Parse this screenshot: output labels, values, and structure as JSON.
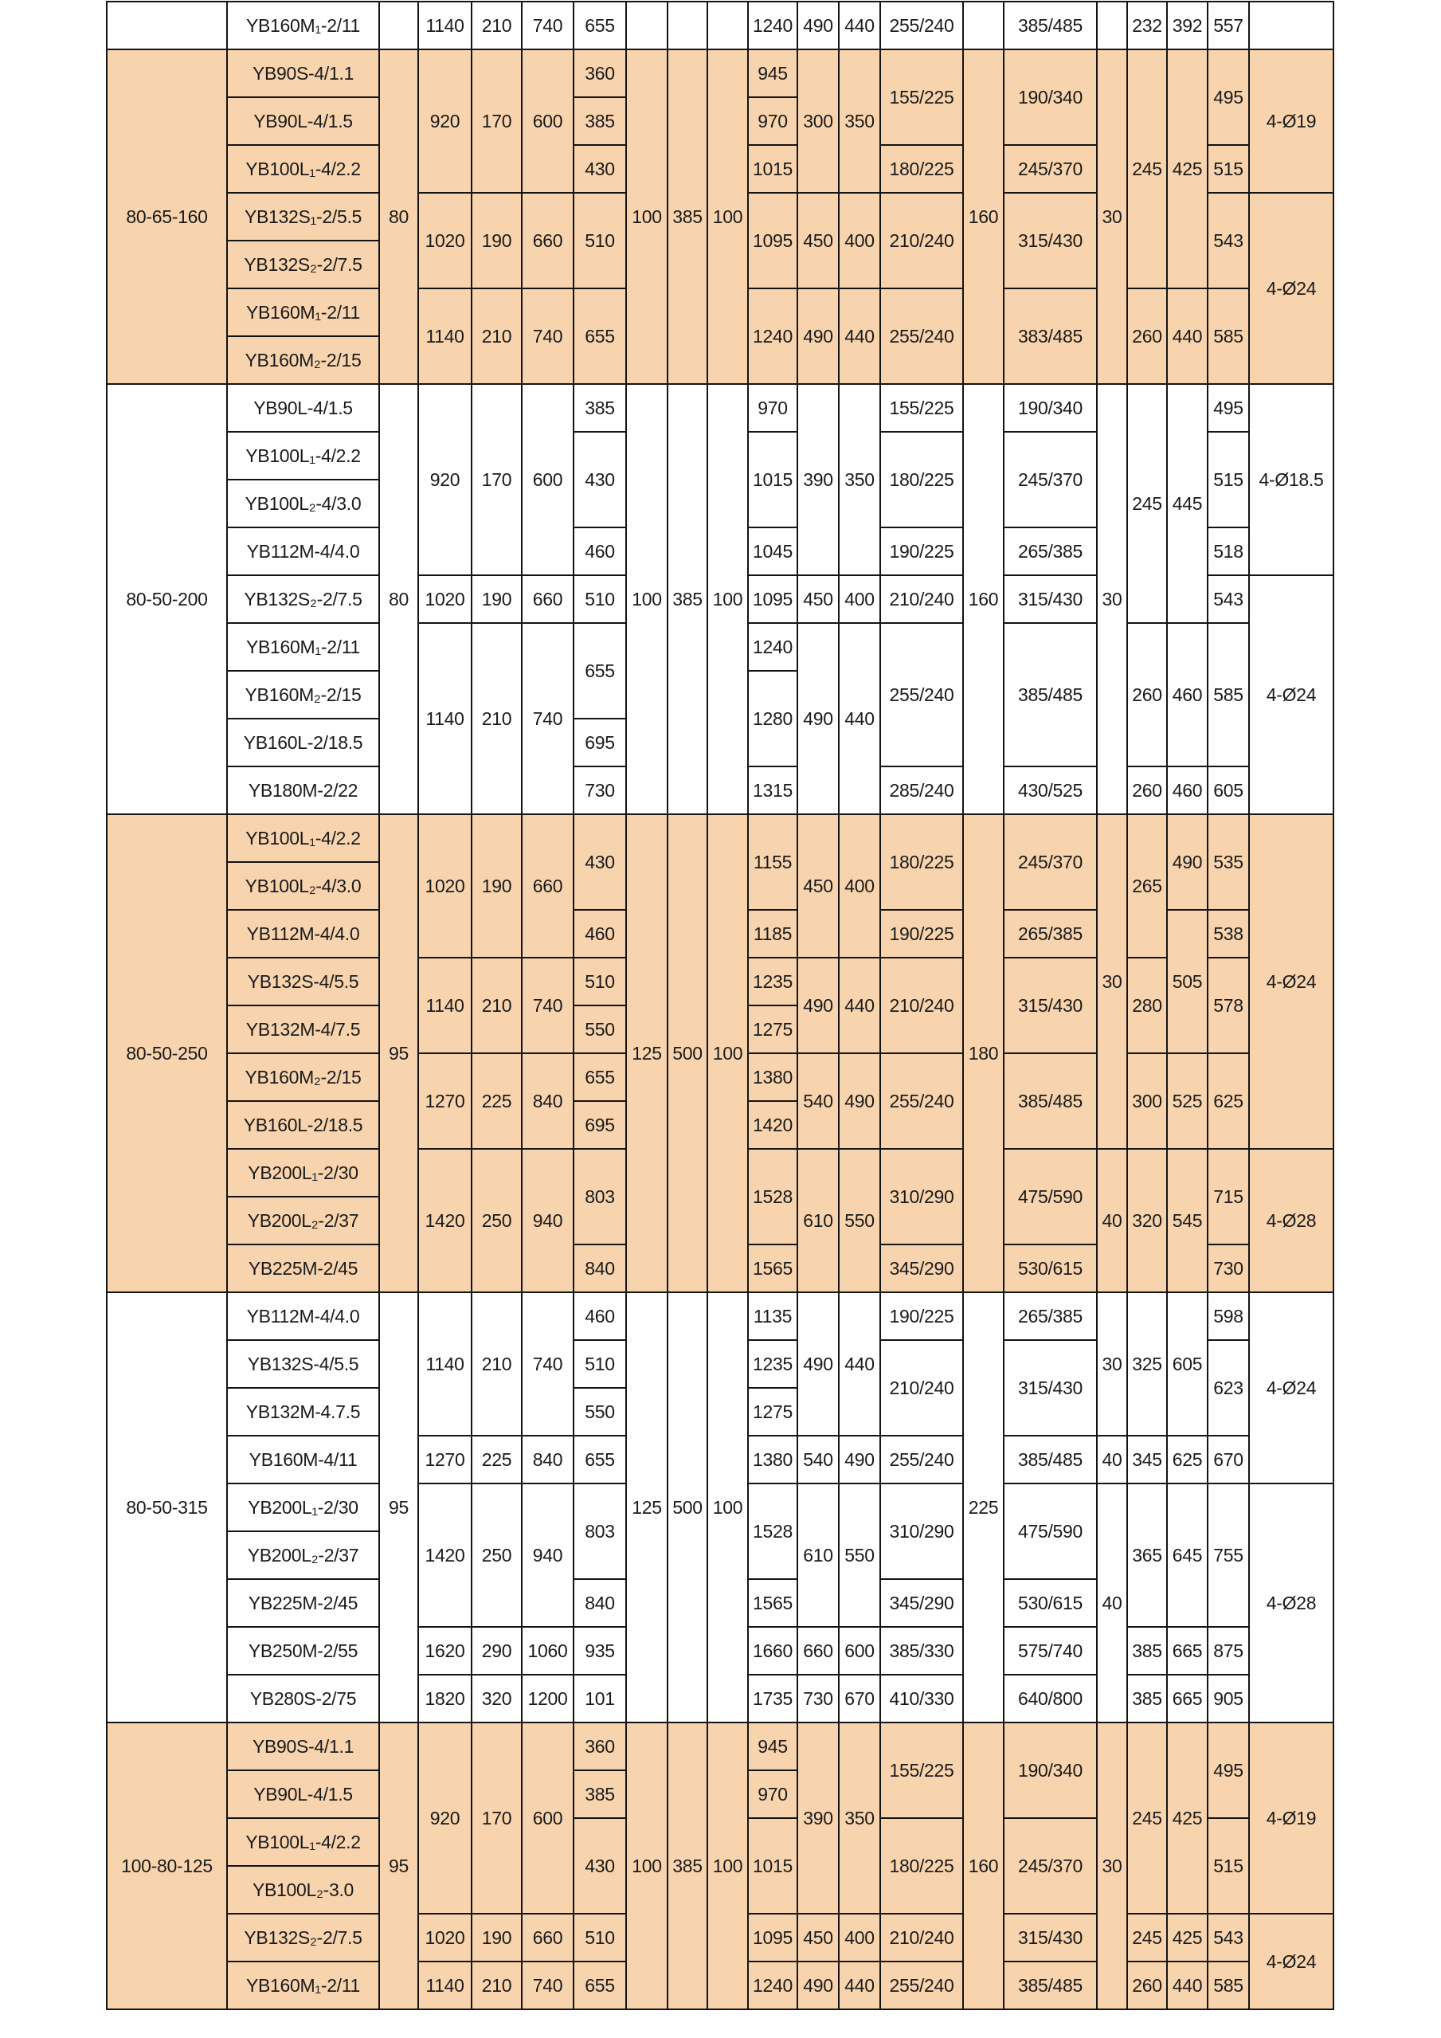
{
  "colors": {
    "shaded": "#f8d4ae",
    "plain": "#ffffff",
    "border": "#141414"
  },
  "table": {
    "sections": [
      {
        "shaded": false,
        "rows": [
          [
            "",
            "YB160M₁-2/11",
            "",
            "1140",
            "210",
            "740",
            "655",
            "",
            "",
            "",
            "1240",
            "490",
            "440",
            "255/240",
            "",
            "385/485",
            "",
            "232",
            "392",
            "557",
            ""
          ]
        ]
      },
      {
        "shaded": true,
        "rows": [
          [
            [
              "80-65-160",
              7
            ],
            "YB90S-4/1.1",
            [
              "80",
              7
            ],
            [
              "920",
              3
            ],
            [
              "170",
              3
            ],
            [
              "600",
              3
            ],
            "360",
            [
              "100",
              7
            ],
            [
              "385",
              7
            ],
            [
              "100",
              7
            ],
            "945",
            [
              "300",
              3
            ],
            [
              "350",
              3
            ],
            [
              "155/225",
              2
            ],
            [
              "160",
              7
            ],
            [
              "190/340",
              2
            ],
            [
              "30",
              7
            ],
            [
              "245",
              5
            ],
            [
              "425",
              5
            ],
            [
              "495",
              2
            ],
            [
              "4-Ø19",
              3
            ]
          ],
          [
            "YB90L-4/1.5",
            "385",
            "970"
          ],
          [
            "YB100L₁-4/2.2",
            "430",
            "1015",
            "180/225",
            "245/370",
            "515"
          ],
          [
            "YB132S₁-2/5.5",
            [
              "1020",
              2
            ],
            [
              "190",
              2
            ],
            [
              "660",
              2
            ],
            [
              "510",
              2
            ],
            [
              "1095",
              2
            ],
            [
              "450",
              2
            ],
            [
              "400",
              2
            ],
            [
              "210/240",
              2
            ],
            [
              "315/430",
              2
            ],
            [
              "543",
              2
            ],
            [
              "4-Ø24",
              4
            ]
          ],
          [
            "YB132S₂-2/7.5"
          ],
          [
            "YB160M₁-2/11",
            [
              "1140",
              2
            ],
            [
              "210",
              2
            ],
            [
              "740",
              2
            ],
            [
              "655",
              2
            ],
            [
              "1240",
              2
            ],
            [
              "490",
              2
            ],
            [
              "440",
              2
            ],
            [
              "255/240",
              2
            ],
            [
              "383/485",
              2
            ],
            [
              "260",
              2
            ],
            [
              "440",
              2
            ],
            [
              "585",
              2
            ]
          ],
          [
            "YB160M₂-2/15"
          ]
        ]
      },
      {
        "shaded": false,
        "rows": [
          [
            [
              "80-50-200",
              9
            ],
            "YB90L-4/1.5",
            [
              "80",
              9
            ],
            [
              "920",
              4
            ],
            [
              "170",
              4
            ],
            [
              "600",
              4
            ],
            "385",
            [
              "100",
              9
            ],
            [
              "385",
              9
            ],
            [
              "100",
              9
            ],
            "970",
            [
              "390",
              4
            ],
            [
              "350",
              4
            ],
            "155/225",
            [
              "160",
              9
            ],
            "190/340",
            [
              "30",
              9
            ],
            [
              "245",
              5
            ],
            [
              "445",
              5
            ],
            "495",
            [
              "4-Ø18.5",
              4
            ]
          ],
          [
            "YB100L₁-4/2.2",
            [
              "430",
              2
            ],
            [
              "1015",
              2
            ],
            [
              "180/225",
              2
            ],
            [
              "245/370",
              2
            ],
            [
              "515",
              2
            ]
          ],
          [
            "YB100L₂-4/3.0"
          ],
          [
            "YB112M-4/4.0",
            "460",
            "1045",
            "190/225",
            "265/385",
            "518"
          ],
          [
            "YB132S₂-2/7.5",
            "1020",
            "190",
            "660",
            "510",
            "1095",
            "450",
            "400",
            "210/240",
            "315/430",
            "543",
            [
              "4-Ø24",
              5
            ]
          ],
          [
            "YB160M₁-2/11",
            [
              "1140",
              4
            ],
            [
              "210",
              4
            ],
            [
              "740",
              4
            ],
            [
              "655",
              2
            ],
            "1240",
            [
              "490",
              4
            ],
            [
              "440",
              4
            ],
            [
              "255/240",
              3
            ],
            [
              "385/485",
              3
            ],
            [
              "260",
              3
            ],
            [
              "460",
              3
            ],
            [
              "585",
              3
            ]
          ],
          [
            "YB160M₂-2/15",
            [
              "1280",
              2
            ]
          ],
          [
            "YB160L-2/18.5",
            "695"
          ],
          [
            "YB180M-2/22",
            "730",
            "1315",
            "285/240",
            "430/525",
            "260",
            "460",
            "605"
          ]
        ]
      },
      {
        "shaded": true,
        "rows": [
          [
            [
              "80-50-250",
              10
            ],
            "YB100L₁-4/2.2",
            [
              "95",
              10
            ],
            [
              "1020",
              3
            ],
            [
              "190",
              3
            ],
            [
              "660",
              3
            ],
            [
              "430",
              2
            ],
            [
              "125",
              10
            ],
            [
              "500",
              10
            ],
            [
              "100",
              10
            ],
            [
              "1155",
              2
            ],
            [
              "450",
              3
            ],
            [
              "400",
              3
            ],
            [
              "180/225",
              2
            ],
            [
              "180",
              10
            ],
            [
              "245/370",
              2
            ],
            [
              "30",
              7
            ],
            [
              "265",
              3
            ],
            [
              "490",
              2
            ],
            [
              "535",
              2
            ],
            [
              "4-Ø24",
              7
            ]
          ],
          [
            "YB100L₂-4/3.0"
          ],
          [
            "YB112M-4/4.0",
            "460",
            "1185",
            "190/225",
            "265/385",
            [
              "505",
              3
            ],
            "538"
          ],
          [
            "YB132S-4/5.5",
            [
              "1140",
              2
            ],
            [
              "210",
              2
            ],
            [
              "740",
              2
            ],
            "510",
            "1235",
            [
              "490",
              2
            ],
            [
              "440",
              2
            ],
            [
              "210/240",
              2
            ],
            [
              "315/430",
              2
            ],
            [
              "280",
              2
            ],
            [
              "578",
              2
            ]
          ],
          [
            "YB132M-4/7.5",
            "550",
            "1275"
          ],
          [
            "YB160M₂-2/15",
            [
              "1270",
              2
            ],
            [
              "225",
              2
            ],
            [
              "840",
              2
            ],
            "655",
            "1380",
            [
              "540",
              2
            ],
            [
              "490",
              2
            ],
            [
              "255/240",
              2
            ],
            [
              "385/485",
              2
            ],
            [
              "300",
              2
            ],
            [
              "525",
              2
            ],
            [
              "625",
              2
            ]
          ],
          [
            "YB160L-2/18.5",
            "695",
            "1420"
          ],
          [
            "YB200L₁-2/30",
            [
              "1420",
              3
            ],
            [
              "250",
              3
            ],
            [
              "940",
              3
            ],
            [
              "803",
              2
            ],
            [
              "1528",
              2
            ],
            [
              "610",
              3
            ],
            [
              "550",
              3
            ],
            [
              "310/290",
              2
            ],
            [
              "475/590",
              2
            ],
            [
              "40",
              3
            ],
            [
              "320",
              3
            ],
            [
              "545",
              3
            ],
            [
              "715",
              2
            ],
            [
              "4-Ø28",
              3
            ]
          ],
          [
            "YB200L₂-2/37"
          ],
          [
            "YB225M-2/45",
            "840",
            "1565",
            "345/290",
            "530/615",
            "730"
          ]
        ]
      },
      {
        "shaded": false,
        "rows": [
          [
            [
              "80-50-315",
              9
            ],
            "YB112M-4/4.0",
            [
              "95",
              9
            ],
            [
              "1140",
              3
            ],
            [
              "210",
              3
            ],
            [
              "740",
              3
            ],
            "460",
            [
              "125",
              9
            ],
            [
              "500",
              9
            ],
            [
              "100",
              9
            ],
            "1135",
            [
              "490",
              3
            ],
            [
              "440",
              3
            ],
            "190/225",
            [
              "225",
              9
            ],
            "265/385",
            [
              "30",
              3
            ],
            [
              "325",
              3
            ],
            [
              "605",
              3
            ],
            "598",
            [
              "4-Ø24",
              4
            ]
          ],
          [
            "YB132S-4/5.5",
            "510",
            "1235",
            [
              "210/240",
              2
            ],
            [
              "315/430",
              2
            ],
            [
              "623",
              2
            ]
          ],
          [
            "YB132M-4.7.5",
            "550",
            "1275"
          ],
          [
            "YB160M-4/11",
            "1270",
            "225",
            "840",
            "655",
            "1380",
            "540",
            "490",
            "255/240",
            "385/485",
            "40",
            "345",
            "625",
            "670"
          ],
          [
            "YB200L₁-2/30",
            [
              "1420",
              3
            ],
            [
              "250",
              3
            ],
            [
              "940",
              3
            ],
            [
              "803",
              2
            ],
            [
              "1528",
              2
            ],
            [
              "610",
              3
            ],
            [
              "550",
              3
            ],
            [
              "310/290",
              2
            ],
            [
              "475/590",
              2
            ],
            [
              "40",
              5
            ],
            [
              "365",
              3
            ],
            [
              "645",
              3
            ],
            [
              "755",
              3
            ],
            [
              "4-Ø28",
              5
            ]
          ],
          [
            "YB200L₂-2/37"
          ],
          [
            "YB225M-2/45",
            "840",
            "1565",
            "345/290",
            "530/615"
          ],
          [
            "YB250M-2/55",
            "1620",
            "290",
            "1060",
            "935",
            "1660",
            "660",
            "600",
            "385/330",
            "575/740",
            "385",
            "665",
            "875"
          ],
          [
            "YB280S-2/75",
            "1820",
            "320",
            "1200",
            "101",
            "1735",
            "730",
            "670",
            "410/330",
            "640/800",
            "385",
            "665",
            "905"
          ]
        ]
      },
      {
        "shaded": true,
        "rows": [
          [
            [
              "100-80-125",
              6
            ],
            "YB90S-4/1.1",
            [
              "95",
              6
            ],
            [
              "920",
              4
            ],
            [
              "170",
              4
            ],
            [
              "600",
              4
            ],
            "360",
            [
              "100",
              6
            ],
            [
              "385",
              6
            ],
            [
              "100",
              6
            ],
            "945",
            [
              "390",
              4
            ],
            [
              "350",
              4
            ],
            [
              "155/225",
              2
            ],
            [
              "160",
              6
            ],
            [
              "190/340",
              2
            ],
            [
              "30",
              6
            ],
            [
              "245",
              4
            ],
            [
              "425",
              4
            ],
            [
              "495",
              2
            ],
            [
              "4-Ø19",
              4
            ]
          ],
          [
            "YB90L-4/1.5",
            "385",
            "970"
          ],
          [
            "YB100L₁-4/2.2",
            [
              "430",
              2
            ],
            [
              "1015",
              2
            ],
            [
              "180/225",
              2
            ],
            [
              "245/370",
              2
            ],
            [
              "515",
              2
            ]
          ],
          [
            "YB100L₂-3.0"
          ],
          [
            "YB132S₂-2/7.5",
            "1020",
            "190",
            "660",
            "510",
            "1095",
            "450",
            "400",
            "210/240",
            "315/430",
            "245",
            "425",
            "543",
            [
              "4-Ø24",
              2
            ]
          ],
          [
            "YB160M₁-2/11",
            "1140",
            "210",
            "740",
            "655",
            "1240",
            "490",
            "440",
            "255/240",
            "385/485",
            "260",
            "440",
            "585"
          ]
        ]
      }
    ]
  }
}
